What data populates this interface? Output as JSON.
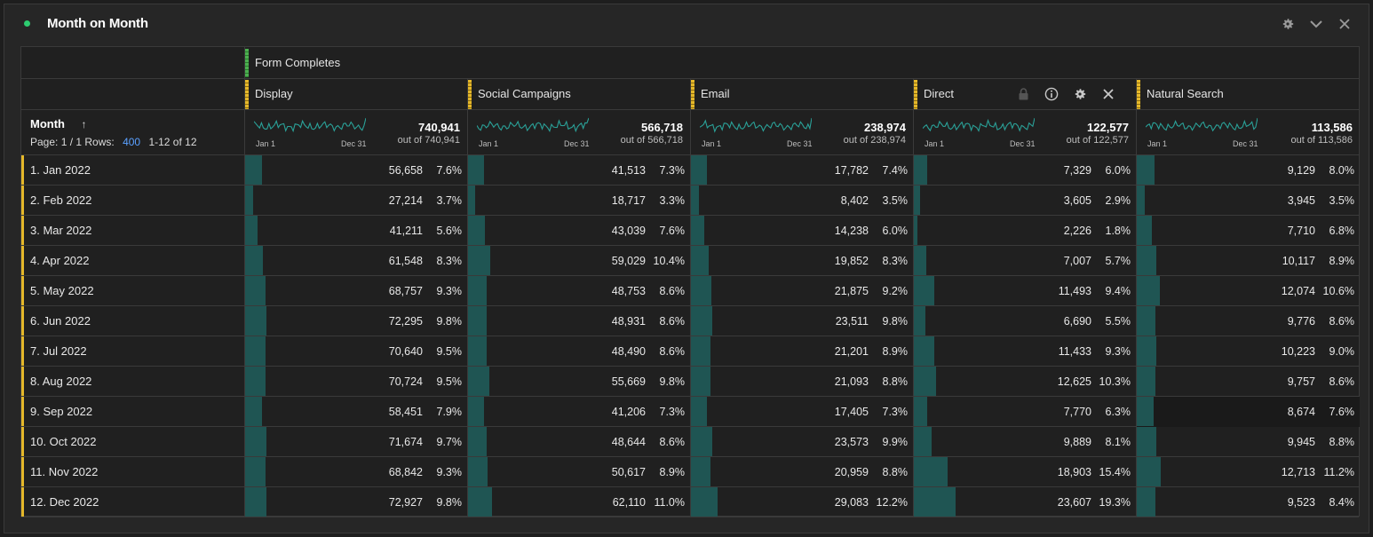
{
  "panel": {
    "title": "Month on Month",
    "status_color": "#2dcc70",
    "icons": [
      "gear-icon",
      "chevron-down-icon",
      "close-icon"
    ]
  },
  "table": {
    "segment": "Form Completes",
    "dimension": {
      "name": "Month",
      "sort_icon": "arrow-up-icon",
      "page_label": "Page: 1 / 1",
      "rows_label": "Rows:",
      "rows_value": "400",
      "range_label": "1-12 of 12"
    },
    "columns": [
      {
        "label": "Display",
        "total": "740,941",
        "out_of": "out of 740,941",
        "spark_start": "Jan 1",
        "spark_end": "Dec 31"
      },
      {
        "label": "Social Campaigns",
        "total": "566,718",
        "out_of": "out of 566,718",
        "spark_start": "Jan 1",
        "spark_end": "Dec 31"
      },
      {
        "label": "Email",
        "total": "238,974",
        "out_of": "out of 238,974",
        "spark_start": "Jan 1",
        "spark_end": "Dec 31"
      },
      {
        "label": "Direct",
        "total": "122,577",
        "out_of": "out of 122,577",
        "spark_start": "Jan 1",
        "spark_end": "Dec 31"
      },
      {
        "label": "Natural Search",
        "total": "113,586",
        "out_of": "out of 113,586",
        "spark_start": "Jan 1",
        "spark_end": "Dec 31"
      }
    ],
    "rows": [
      {
        "dim": "1.  Jan 2022",
        "cells": [
          [
            "56,658",
            "7.6%",
            7.6
          ],
          [
            "41,513",
            "7.3%",
            7.3
          ],
          [
            "17,782",
            "7.4%",
            7.4
          ],
          [
            "7,329",
            "6.0%",
            6.0
          ],
          [
            "9,129",
            "8.0%",
            8.0
          ]
        ]
      },
      {
        "dim": "2.  Feb 2022",
        "cells": [
          [
            "27,214",
            "3.7%",
            3.7
          ],
          [
            "18,717",
            "3.3%",
            3.3
          ],
          [
            "8,402",
            "3.5%",
            3.5
          ],
          [
            "3,605",
            "2.9%",
            2.9
          ],
          [
            "3,945",
            "3.5%",
            3.5
          ]
        ]
      },
      {
        "dim": "3.  Mar 2022",
        "cells": [
          [
            "41,211",
            "5.6%",
            5.6
          ],
          [
            "43,039",
            "7.6%",
            7.6
          ],
          [
            "14,238",
            "6.0%",
            6.0
          ],
          [
            "2,226",
            "1.8%",
            1.8
          ],
          [
            "7,710",
            "6.8%",
            6.8
          ]
        ]
      },
      {
        "dim": "4.  Apr 2022",
        "cells": [
          [
            "61,548",
            "8.3%",
            8.3
          ],
          [
            "59,029",
            "10.4%",
            10.4
          ],
          [
            "19,852",
            "8.3%",
            8.3
          ],
          [
            "7,007",
            "5.7%",
            5.7
          ],
          [
            "10,117",
            "8.9%",
            8.9
          ]
        ]
      },
      {
        "dim": "5.  May 2022",
        "cells": [
          [
            "68,757",
            "9.3%",
            9.3
          ],
          [
            "48,753",
            "8.6%",
            8.6
          ],
          [
            "21,875",
            "9.2%",
            9.2
          ],
          [
            "11,493",
            "9.4%",
            9.4
          ],
          [
            "12,074",
            "10.6%",
            10.6
          ]
        ]
      },
      {
        "dim": "6.  Jun 2022",
        "cells": [
          [
            "72,295",
            "9.8%",
            9.8
          ],
          [
            "48,931",
            "8.6%",
            8.6
          ],
          [
            "23,511",
            "9.8%",
            9.8
          ],
          [
            "6,690",
            "5.5%",
            5.5
          ],
          [
            "9,776",
            "8.6%",
            8.6
          ]
        ]
      },
      {
        "dim": "7.  Jul 2022",
        "cells": [
          [
            "70,640",
            "9.5%",
            9.5
          ],
          [
            "48,490",
            "8.6%",
            8.6
          ],
          [
            "21,201",
            "8.9%",
            8.9
          ],
          [
            "11,433",
            "9.3%",
            9.3
          ],
          [
            "10,223",
            "9.0%",
            9.0
          ]
        ]
      },
      {
        "dim": "8.  Aug 2022",
        "cells": [
          [
            "70,724",
            "9.5%",
            9.5
          ],
          [
            "55,669",
            "9.8%",
            9.8
          ],
          [
            "21,093",
            "8.8%",
            8.8
          ],
          [
            "12,625",
            "10.3%",
            10.3
          ],
          [
            "9,757",
            "8.6%",
            8.6
          ]
        ]
      },
      {
        "dim": "9.  Sep 2022",
        "cells": [
          [
            "58,451",
            "7.9%",
            7.9
          ],
          [
            "41,206",
            "7.3%",
            7.3
          ],
          [
            "17,405",
            "7.3%",
            7.3
          ],
          [
            "7,770",
            "6.3%",
            6.3
          ],
          [
            "8,674",
            "7.6%",
            7.6
          ]
        ]
      },
      {
        "dim": "10.  Oct 2022",
        "cells": [
          [
            "71,674",
            "9.7%",
            9.7
          ],
          [
            "48,644",
            "8.6%",
            8.6
          ],
          [
            "23,573",
            "9.9%",
            9.9
          ],
          [
            "9,889",
            "8.1%",
            8.1
          ],
          [
            "9,945",
            "8.8%",
            8.8
          ]
        ]
      },
      {
        "dim": "11.  Nov 2022",
        "cells": [
          [
            "68,842",
            "9.3%",
            9.3
          ],
          [
            "50,617",
            "8.9%",
            8.9
          ],
          [
            "20,959",
            "8.8%",
            8.8
          ],
          [
            "18,903",
            "15.4%",
            15.4
          ],
          [
            "12,713",
            "11.2%",
            11.2
          ]
        ]
      },
      {
        "dim": "12.  Dec 2022",
        "cells": [
          [
            "72,927",
            "9.8%",
            9.8
          ],
          [
            "62,110",
            "11.0%",
            11.0
          ],
          [
            "29,083",
            "12.2%",
            12.2
          ],
          [
            "23,607",
            "19.3%",
            19.3
          ],
          [
            "9,523",
            "8.4%",
            8.4
          ]
        ]
      }
    ],
    "direct_column_icons": [
      "lock-icon",
      "info-icon",
      "gear-icon",
      "close-icon"
    ],
    "accent": "#e5b82a",
    "fill_color": "#1f5553",
    "spark_color": "#2aa198"
  }
}
